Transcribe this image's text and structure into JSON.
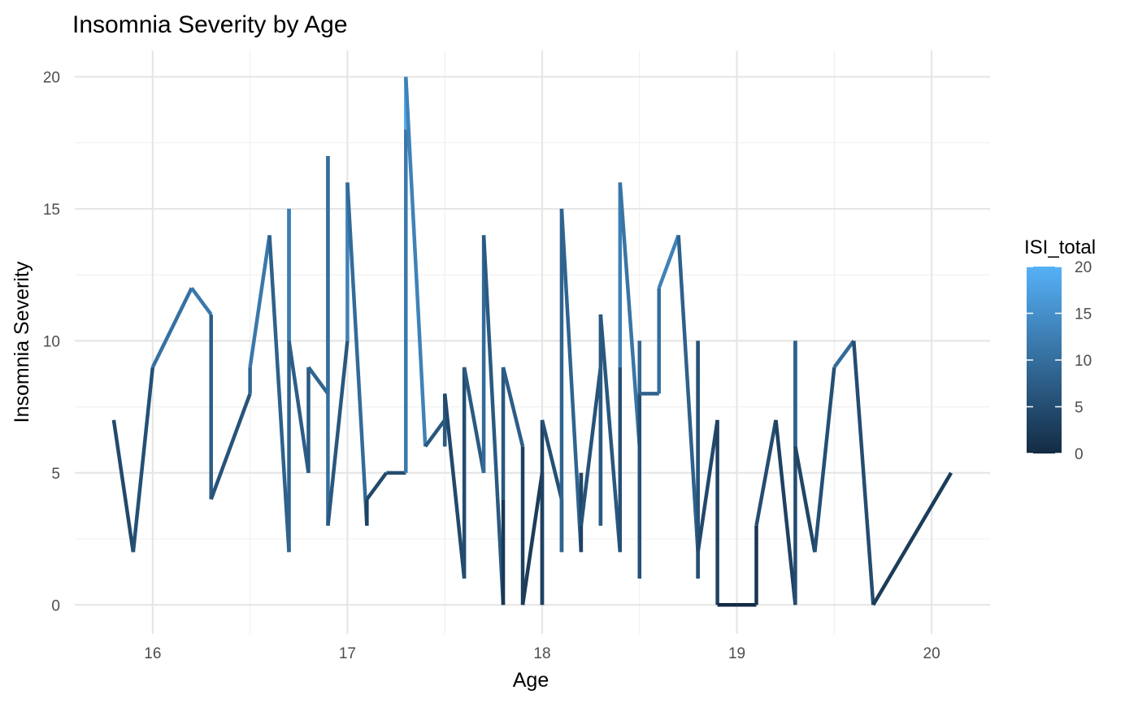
{
  "chart_data": {
    "type": "line",
    "title": "Insomnia Severity by Age",
    "xlabel": "Age",
    "ylabel": "Insomnia Severity",
    "xlim": [
      15.6,
      20.3
    ],
    "ylim": [
      -1.1,
      21.0
    ],
    "x_ticks": [
      16,
      17,
      18,
      19,
      20
    ],
    "y_ticks": [
      0,
      5,
      10,
      15,
      20
    ],
    "grid": true,
    "color_scale": {
      "title": "ISI_total",
      "low_color": "#132b43",
      "high_color": "#56b1f7",
      "min": 0,
      "max": 20,
      "ticks": [
        0,
        5,
        10,
        15,
        20
      ]
    },
    "legend_position": "right",
    "points": [
      [
        15.8,
        7
      ],
      [
        15.9,
        2
      ],
      [
        16.0,
        9
      ],
      [
        16.2,
        12
      ],
      [
        16.3,
        11
      ],
      [
        16.3,
        4
      ],
      [
        16.5,
        8
      ],
      [
        16.5,
        9
      ],
      [
        16.6,
        14
      ],
      [
        16.7,
        2
      ],
      [
        16.7,
        15
      ],
      [
        16.7,
        10
      ],
      [
        16.8,
        5
      ],
      [
        16.8,
        9
      ],
      [
        16.9,
        8
      ],
      [
        16.9,
        17
      ],
      [
        16.9,
        3
      ],
      [
        17.0,
        10
      ],
      [
        17.0,
        16
      ],
      [
        17.1,
        3
      ],
      [
        17.1,
        4
      ],
      [
        17.2,
        5
      ],
      [
        17.3,
        5
      ],
      [
        17.3,
        18
      ],
      [
        17.3,
        20
      ],
      [
        17.4,
        6
      ],
      [
        17.5,
        7
      ],
      [
        17.5,
        6
      ],
      [
        17.5,
        8
      ],
      [
        17.6,
        1
      ],
      [
        17.6,
        9
      ],
      [
        17.7,
        5
      ],
      [
        17.7,
        14
      ],
      [
        17.8,
        0
      ],
      [
        17.8,
        4
      ],
      [
        17.8,
        9
      ],
      [
        17.9,
        6
      ],
      [
        17.9,
        0
      ],
      [
        18.0,
        5
      ],
      [
        18.0,
        0
      ],
      [
        18.0,
        7
      ],
      [
        18.1,
        4
      ],
      [
        18.1,
        2
      ],
      [
        18.1,
        15
      ],
      [
        18.2,
        2
      ],
      [
        18.2,
        5
      ],
      [
        18.2,
        3
      ],
      [
        18.3,
        9
      ],
      [
        18.3,
        3
      ],
      [
        18.3,
        11
      ],
      [
        18.4,
        2
      ],
      [
        18.4,
        9
      ],
      [
        18.4,
        16
      ],
      [
        18.5,
        6
      ],
      [
        18.5,
        1
      ],
      [
        18.5,
        10
      ],
      [
        18.5,
        8
      ],
      [
        18.6,
        8
      ],
      [
        18.6,
        12
      ],
      [
        18.7,
        14
      ],
      [
        18.8,
        2
      ],
      [
        18.8,
        1
      ],
      [
        18.8,
        10
      ],
      [
        18.8,
        2
      ],
      [
        18.9,
        7
      ],
      [
        18.9,
        0
      ],
      [
        19.0,
        0
      ],
      [
        19.1,
        0
      ],
      [
        19.1,
        3
      ],
      [
        19.2,
        7
      ],
      [
        19.3,
        0
      ],
      [
        19.3,
        10
      ],
      [
        19.3,
        6
      ],
      [
        19.4,
        2
      ],
      [
        19.5,
        9
      ],
      [
        19.6,
        10
      ],
      [
        19.7,
        0
      ],
      [
        20.1,
        5
      ]
    ]
  }
}
